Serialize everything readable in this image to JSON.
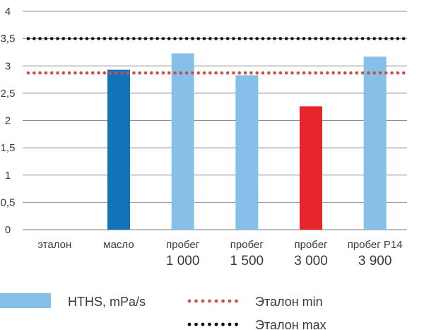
{
  "chart_data": {
    "type": "bar",
    "categories": [
      {
        "line1": "эталон",
        "line2": ""
      },
      {
        "line1": "масло",
        "line2": ""
      },
      {
        "line1": "пробег",
        "line2": "1 000"
      },
      {
        "line1": "пробег",
        "line2": "1 500"
      },
      {
        "line1": "пробег",
        "line2": "3 000"
      },
      {
        "line1": "пробег Р14",
        "line2": "3 900"
      }
    ],
    "values": [
      null,
      2.93,
      3.23,
      2.83,
      2.26,
      3.17
    ],
    "bar_colors": [
      "#86bfe8",
      "#1472b9",
      "#86bfe8",
      "#86bfe8",
      "#e8252b",
      "#86bfe8"
    ],
    "ylim": [
      0,
      4
    ],
    "yticks": [
      "0",
      "0,5",
      "1",
      "1,5",
      "2",
      "2,5",
      "3",
      "3,5",
      "4"
    ],
    "reference_lines": [
      {
        "name": "Эталон min",
        "value": 2.87,
        "color": "#c8524b",
        "style": "dotted"
      },
      {
        "name": "Эталон max",
        "value": 3.5,
        "color": "#111111",
        "style": "dotted"
      }
    ],
    "legend": [
      {
        "label": "HTHS, mPa/s",
        "kind": "bar",
        "color": "#86bfe8"
      },
      {
        "label": "Эталон min",
        "kind": "dotted-line",
        "color": "#c8524b"
      },
      {
        "label": "Эталон max",
        "kind": "dotted-line",
        "color": "#111111"
      }
    ],
    "grid": true,
    "legend_position": "bottom"
  }
}
